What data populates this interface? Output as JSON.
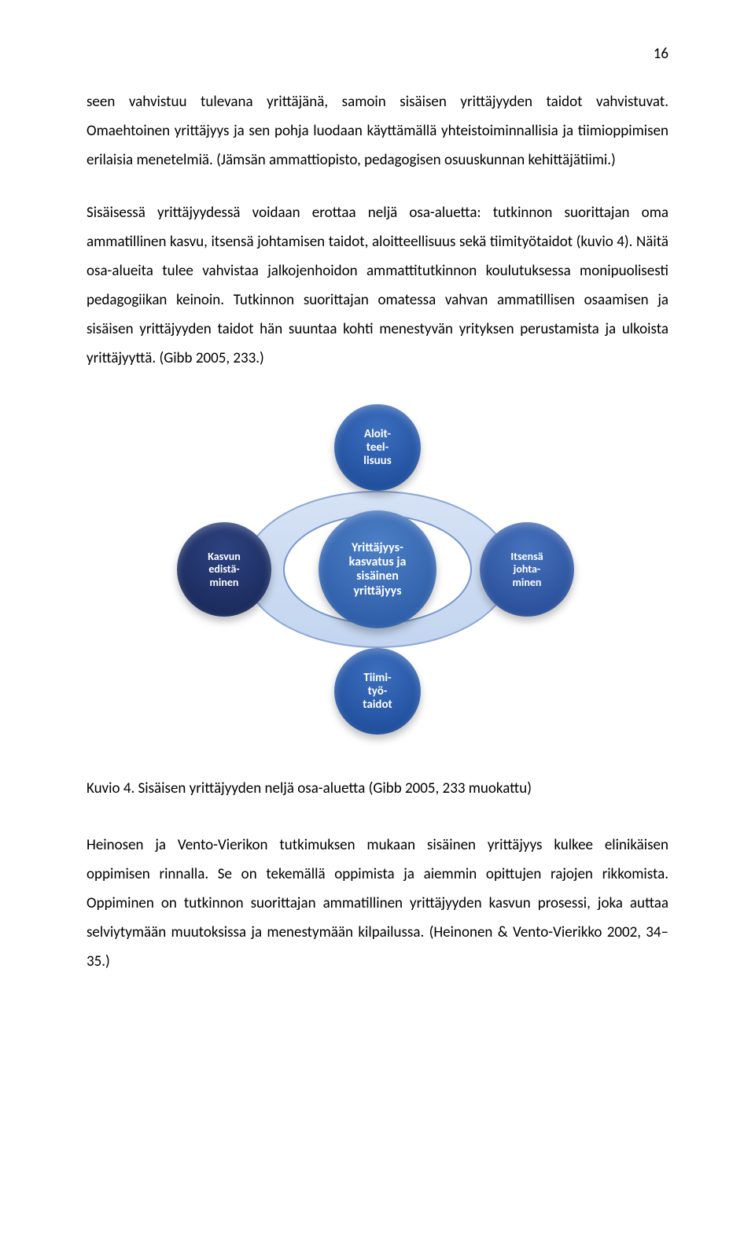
{
  "page_number": "16",
  "paragraphs": {
    "p1": "seen vahvistuu tulevana yrittäjänä, samoin sisäisen yrittäjyyden taidot vahvistuvat. Omaehtoinen yrittäjyys ja sen pohja luodaan käyttämällä yhteistoiminnallisia ja tiimioppimisen erilaisia menetelmiä. (Jämsän ammattiopisto, pedagogisen osuuskunnan kehittäjätiimi.)",
    "p2": "Sisäisessä yrittäjyydessä voidaan erottaa neljä osa-aluetta: tutkinnon suorittajan oma ammatillinen kasvu, itsensä johtamisen taidot, aloitteellisuus sekä tiimityötaidot (kuvio 4). Näitä osa-alueita tulee vahvistaa jalkojenhoidon ammattitutkinnon koulutuksessa monipuolisesti pedagogiikan keinoin. Tutkinnon suorittajan omatessa vahvan ammatillisen osaamisen ja sisäisen yrittäjyyden taidot hän suuntaa kohti menestyvän yrityksen perustamista ja ulkoista yrittäjyyttä. (Gibb 2005, 233.)",
    "caption": "Kuvio 4. Sisäisen yrittäjyyden neljä osa-aluetta (Gibb 2005, 233 muokattu)",
    "p3": "Heinosen ja Vento-Vierikon tutkimuksen mukaan sisäinen yrittäjyys kulkee elinikäisen oppimisen rinnalla. Se on tekemällä oppimista ja aiemmin opittujen rajojen rikkomista. Oppiminen on tutkinnon suorittajan ammatillinen yrittäjyyden kasvun prosessi, joka auttaa selviytymään muutoksissa ja menestymään kilpailussa. (Heinonen & Vento-Vierikko 2002, 34–35.)"
  },
  "diagram": {
    "type": "network",
    "background_color": "#ffffff",
    "ring_outer_fill": "#cedcf2",
    "ring_border": "#7a9bd0",
    "nodes": {
      "center": {
        "label": "Yrittäjyys-\nkasvatus ja\nsisäinen\nyrittäjyys",
        "fill_top": "#2f5ea8",
        "fill_bottom": "#4c7fc6",
        "fontsize": 16
      },
      "top": {
        "label": "Aloit-\nteel-\nlisuus",
        "fill_top": "#1f4e9c",
        "fill_bottom": "#3d6fbf",
        "fontsize": 15
      },
      "bottom": {
        "label": "Tiimi-\ntyö-\ntaidot",
        "fill_top": "#1f4e9c",
        "fill_bottom": "#3d6fbf",
        "fontsize": 15
      },
      "left": {
        "label": "Kasvun\nedistä-\nminen",
        "fill_top": "#1a2a5c",
        "fill_bottom": "#2d4280",
        "fontsize": 14
      },
      "right": {
        "label": "Itsensä\njohta-\nminen",
        "fill_top": "#2a4f9a",
        "fill_bottom": "#4672bd",
        "fontsize": 14
      }
    }
  }
}
